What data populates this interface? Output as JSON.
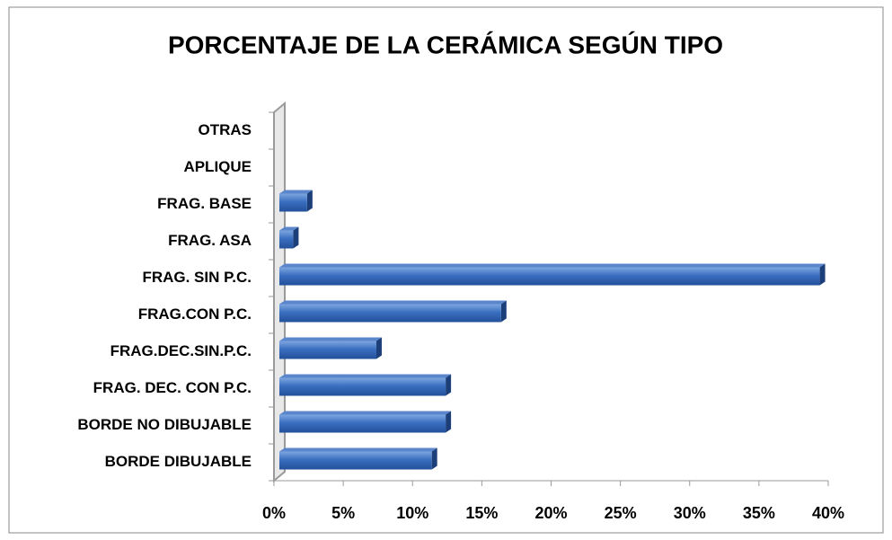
{
  "chart_data": {
    "type": "barh",
    "title": "PORCENTAJE DE LA CERÁMICA SEGÚN TIPO",
    "categories": [
      "BORDE DIBUJABLE",
      "BORDE NO DIBUJABLE",
      "FRAG. DEC. CON P.C.",
      "FRAG.DEC.SIN.P.C.",
      "FRAG.CON P.C.",
      "FRAG. SIN P.C.",
      "FRAG. ASA",
      "FRAG. BASE",
      "APLIQUE",
      "OTRAS"
    ],
    "values": [
      11,
      12,
      12,
      7,
      16,
      39,
      1,
      2,
      0,
      0
    ],
    "color": "#3a6fbf",
    "xlim": [
      0,
      40
    ],
    "xticks": [
      {
        "value": 0,
        "label": "0%"
      },
      {
        "value": 5,
        "label": "5%"
      },
      {
        "value": 10,
        "label": "10%"
      },
      {
        "value": 15,
        "label": "15%"
      },
      {
        "value": 20,
        "label": "20%"
      },
      {
        "value": 25,
        "label": "25%"
      },
      {
        "value": 30,
        "label": "30%"
      },
      {
        "value": 35,
        "label": "35%"
      },
      {
        "value": 40,
        "label": "40%"
      }
    ],
    "grid": false
  }
}
